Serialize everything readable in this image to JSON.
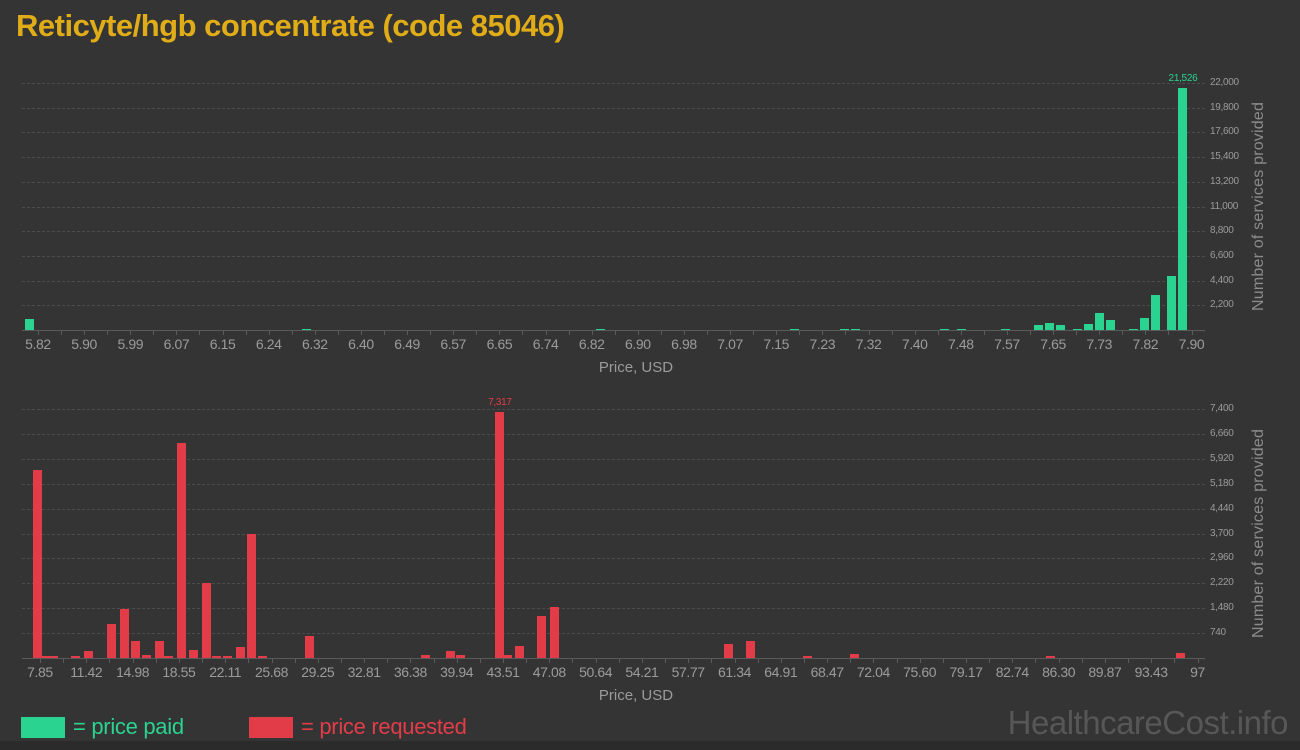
{
  "page": {
    "title": "Reticyte/hgb concentrate (code 85046)",
    "brand": "HealthcareCost.info"
  },
  "legend": {
    "paid_label": "= price paid",
    "requested_label": "= price requested"
  },
  "colors": {
    "background": "#343434",
    "footer_strip": "#2b2b2b",
    "title_gold": "#e0ac18",
    "paid_green": "#2ad390",
    "requested_red": "#e23c49",
    "grid_line": "#4c4c4e",
    "axis_line": "#5a5a5c",
    "tick_text": "#9b9b9d",
    "axis_title_text": "#8b8b8d",
    "brand_text": "#575757"
  },
  "chart_data": [
    {
      "type": "bar",
      "series": "price paid",
      "color": "#2ad390",
      "xlabel": "Price, USD",
      "ylabel": "Number of services provided",
      "grid": "horizontal dashed",
      "legend_position": "bottom-left",
      "x_tick_labels": [
        "5.82",
        "5.90",
        "5.99",
        "6.07",
        "6.15",
        "6.24",
        "6.32",
        "6.40",
        "6.49",
        "6.57",
        "6.65",
        "6.74",
        "6.82",
        "6.90",
        "6.98",
        "7.07",
        "7.15",
        "7.23",
        "7.32",
        "7.40",
        "7.48",
        "7.57",
        "7.65",
        "7.73",
        "7.82",
        "7.90"
      ],
      "y_tick_labels": [
        "2,200",
        "4,400",
        "6,600",
        "8,800",
        "11,000",
        "13,200",
        "15,400",
        "17,600",
        "19,800",
        "22,000"
      ],
      "xlim": [
        5.82,
        7.9
      ],
      "ylim": [
        0,
        22000
      ],
      "y_tick_step": 2200,
      "annotation": {
        "label": "21,526",
        "price": 7.89
      },
      "points": [
        [
          5.81,
          950
        ],
        [
          6.31,
          90
        ],
        [
          6.84,
          90
        ],
        [
          7.19,
          90
        ],
        [
          7.28,
          90
        ],
        [
          7.3,
          90
        ],
        [
          7.46,
          90
        ],
        [
          7.49,
          90
        ],
        [
          7.57,
          90
        ],
        [
          7.63,
          420
        ],
        [
          7.65,
          590
        ],
        [
          7.67,
          460
        ],
        [
          7.7,
          130
        ],
        [
          7.72,
          500
        ],
        [
          7.74,
          1550
        ],
        [
          7.76,
          930
        ],
        [
          7.8,
          130
        ],
        [
          7.82,
          1050
        ],
        [
          7.84,
          3080
        ],
        [
          7.87,
          4800
        ],
        [
          7.89,
          21526
        ]
      ]
    },
    {
      "type": "bar",
      "series": "price requested",
      "color": "#e23c49",
      "xlabel": "Price, USD",
      "ylabel": "Number of services provided",
      "grid": "horizontal dashed",
      "legend_position": "bottom-left",
      "x_tick_labels": [
        "7.85",
        "11.42",
        "14.98",
        "18.55",
        "22.11",
        "25.68",
        "29.25",
        "32.81",
        "36.38",
        "39.94",
        "43.51",
        "47.08",
        "50.64",
        "54.21",
        "57.77",
        "61.34",
        "64.91",
        "68.47",
        "72.04",
        "75.60",
        "79.17",
        "82.74",
        "86.30",
        "89.87",
        "93.43",
        "97"
      ],
      "y_tick_labels": [
        "740",
        "1,480",
        "2,220",
        "2,960",
        "3,700",
        "4,440",
        "5,180",
        "5,920",
        "6,660",
        "7,400"
      ],
      "xlim": [
        7.85,
        97
      ],
      "ylim": [
        0,
        7400
      ],
      "y_tick_step": 740,
      "annotation": {
        "label": "7,317",
        "price": 43.5
      },
      "points": [
        [
          7.85,
          5600
        ],
        [
          8.4,
          60
        ],
        [
          9.1,
          45
        ],
        [
          10.8,
          55
        ],
        [
          11.8,
          220
        ],
        [
          13.6,
          1000
        ],
        [
          14.6,
          1450
        ],
        [
          15.4,
          510
        ],
        [
          16.3,
          80
        ],
        [
          17.3,
          510
        ],
        [
          18.0,
          45
        ],
        [
          19.0,
          6380
        ],
        [
          19.9,
          240
        ],
        [
          20.9,
          2230
        ],
        [
          21.7,
          60
        ],
        [
          22.5,
          70
        ],
        [
          23.5,
          330
        ],
        [
          24.4,
          3700
        ],
        [
          25.2,
          45
        ],
        [
          28.8,
          650
        ],
        [
          37.8,
          90
        ],
        [
          39.7,
          220
        ],
        [
          40.5,
          100
        ],
        [
          43.5,
          7317
        ],
        [
          44.1,
          100
        ],
        [
          45.0,
          370
        ],
        [
          46.7,
          1250
        ],
        [
          47.7,
          1520
        ],
        [
          61.1,
          420
        ],
        [
          62.8,
          520
        ],
        [
          67.2,
          60
        ],
        [
          70.8,
          130
        ],
        [
          85.9,
          60
        ],
        [
          95.9,
          150
        ]
      ]
    }
  ]
}
